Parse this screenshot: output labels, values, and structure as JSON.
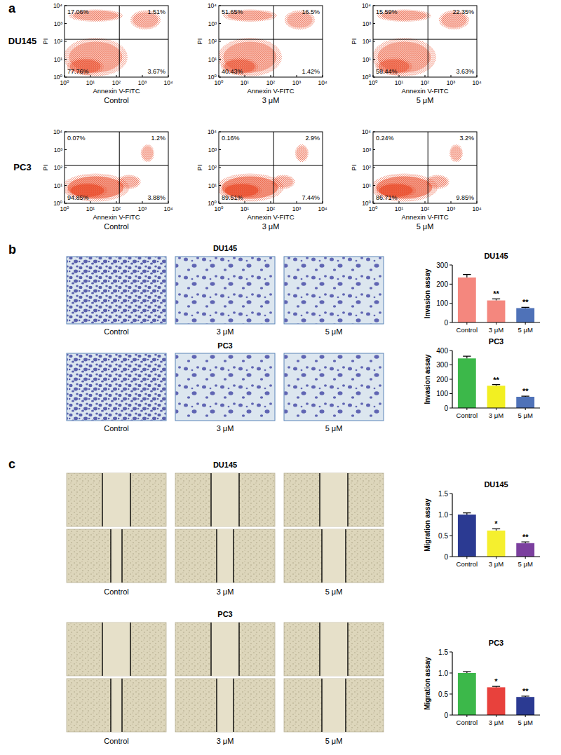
{
  "chart_data": [
    {
      "type": "scatter",
      "title": "Control",
      "xlabel": "Annexin V-FITC",
      "ylabel": "PI",
      "log": true,
      "color": "#e8401c",
      "xlim": [
        1,
        10000
      ],
      "ylim": [
        1,
        10000
      ],
      "xticks": [
        {
          "value": 1,
          "label": "10⁰"
        },
        {
          "value": 10,
          "label": "10¹"
        },
        {
          "value": 100,
          "label": "10²"
        },
        {
          "value": 1000,
          "label": "10³"
        },
        {
          "value": 10000,
          "label": "10⁴"
        }
      ],
      "yticks": [
        {
          "value": 1,
          "label": "10⁰"
        },
        {
          "value": 10,
          "label": "10¹"
        },
        {
          "value": 100,
          "label": "10²"
        },
        {
          "value": 1000,
          "label": "10³"
        },
        {
          "value": 10000,
          "label": "10⁴"
        }
      ],
      "gates": [
        130,
        130
      ],
      "annotations": [
        "17.06%",
        "1.51%",
        "77.76%",
        "3.67%"
      ]
    },
    {
      "type": "scatter",
      "title": "3 μM",
      "xlabel": "Annexin V-FITC",
      "ylabel": "PI",
      "log": true,
      "color": "#e8401c",
      "xlim": [
        1,
        10000
      ],
      "ylim": [
        1,
        10000
      ],
      "xticks": [
        {
          "value": 1,
          "label": "10⁰"
        },
        {
          "value": 10,
          "label": "10¹"
        },
        {
          "value": 100,
          "label": "10²"
        },
        {
          "value": 1000,
          "label": "10³"
        },
        {
          "value": 10000,
          "label": "10⁴"
        }
      ],
      "yticks": [
        {
          "value": 1,
          "label": "10⁰"
        },
        {
          "value": 10,
          "label": "10¹"
        },
        {
          "value": 100,
          "label": "10²"
        },
        {
          "value": 1000,
          "label": "10³"
        },
        {
          "value": 10000,
          "label": "10⁴"
        }
      ],
      "gates": [
        130,
        130
      ],
      "annotations": [
        "51.65%",
        "16.5%",
        "40.43%",
        "1.42%"
      ]
    },
    {
      "type": "scatter",
      "title": "5 μM",
      "xlabel": "Annexin V-FITC",
      "ylabel": "PI",
      "log": true,
      "color": "#e8401c",
      "xlim": [
        1,
        10000
      ],
      "ylim": [
        1,
        10000
      ],
      "xticks": [
        {
          "value": 1,
          "label": "10⁰"
        },
        {
          "value": 10,
          "label": "10¹"
        },
        {
          "value": 100,
          "label": "10²"
        },
        {
          "value": 1000,
          "label": "10³"
        },
        {
          "value": 10000,
          "label": "10⁴"
        }
      ],
      "yticks": [
        {
          "value": 1,
          "label": "10⁰"
        },
        {
          "value": 10,
          "label": "10¹"
        },
        {
          "value": 100,
          "label": "10²"
        },
        {
          "value": 1000,
          "label": "10³"
        },
        {
          "value": 10000,
          "label": "10⁴"
        }
      ],
      "gates": [
        130,
        130
      ],
      "annotations": [
        "15.59%",
        "22.35%",
        "58.44%",
        "3.63%"
      ]
    },
    {
      "type": "scatter",
      "title": "Control",
      "xlabel": "Annexin V-FITC",
      "ylabel": "PI",
      "log": true,
      "color": "#e8401c",
      "xlim": [
        1,
        10000
      ],
      "ylim": [
        1,
        10000
      ],
      "xticks": [
        {
          "value": 1,
          "label": "10⁰"
        },
        {
          "value": 10,
          "label": "10¹"
        },
        {
          "value": 100,
          "label": "10²"
        },
        {
          "value": 1000,
          "label": "10³"
        },
        {
          "value": 10000,
          "label": "10⁴"
        }
      ],
      "yticks": [
        {
          "value": 1,
          "label": "10⁰"
        },
        {
          "value": 10,
          "label": "10¹"
        },
        {
          "value": 100,
          "label": "10²"
        },
        {
          "value": 1000,
          "label": "10³"
        },
        {
          "value": 10000,
          "label": "10⁴"
        }
      ],
      "gates": [
        130,
        130
      ],
      "annotations": [
        "0.07%",
        "1.2%",
        "94.85%",
        "3.88%"
      ]
    },
    {
      "type": "scatter",
      "title": "3 μM",
      "xlabel": "Annexin V-FITC",
      "ylabel": "PI",
      "log": true,
      "color": "#e8401c",
      "xlim": [
        1,
        10000
      ],
      "ylim": [
        1,
        10000
      ],
      "xticks": [
        {
          "value": 1,
          "label": "10⁰"
        },
        {
          "value": 10,
          "label": "10¹"
        },
        {
          "value": 100,
          "label": "10²"
        },
        {
          "value": 1000,
          "label": "10³"
        },
        {
          "value": 10000,
          "label": "10⁴"
        }
      ],
      "yticks": [
        {
          "value": 1,
          "label": "10⁰"
        },
        {
          "value": 10,
          "label": "10¹"
        },
        {
          "value": 100,
          "label": "10²"
        },
        {
          "value": 1000,
          "label": "10³"
        },
        {
          "value": 10000,
          "label": "10⁴"
        }
      ],
      "gates": [
        130,
        130
      ],
      "annotations": [
        "0.16%",
        "2.9%",
        "89.51%",
        "7.44%"
      ]
    },
    {
      "type": "scatter",
      "title": "5 μM",
      "xlabel": "Annexin V-FITC",
      "ylabel": "PI",
      "log": true,
      "color": "#e8401c",
      "xlim": [
        1,
        10000
      ],
      "ylim": [
        1,
        10000
      ],
      "xticks": [
        {
          "value": 1,
          "label": "10⁰"
        },
        {
          "value": 10,
          "label": "10¹"
        },
        {
          "value": 100,
          "label": "10²"
        },
        {
          "value": 1000,
          "label": "10³"
        },
        {
          "value": 10000,
          "label": "10⁴"
        }
      ],
      "yticks": [
        {
          "value": 1,
          "label": "10⁰"
        },
        {
          "value": 10,
          "label": "10¹"
        },
        {
          "value": 100,
          "label": "10²"
        },
        {
          "value": 1000,
          "label": "10³"
        },
        {
          "value": 10000,
          "label": "10⁴"
        }
      ],
      "gates": [
        130,
        130
      ],
      "annotations": [
        "0.24%",
        "3.2%",
        "86.71%",
        "9.85%"
      ]
    },
    {
      "type": "bar",
      "title": "DU145",
      "ylabel": "Invasion assay",
      "categories": [
        "Control",
        "3 μM",
        "5 μM"
      ],
      "values": [
        235,
        115,
        75
      ],
      "errors": [
        15,
        8,
        4
      ],
      "colors": [
        "#f4877e",
        "#f4877e",
        "#4f72b8"
      ],
      "ylim": [
        0,
        300
      ],
      "yticks": [
        0,
        100,
        200,
        300
      ],
      "annotations": [
        null,
        "**",
        "**"
      ]
    },
    {
      "type": "bar",
      "title": "PC3",
      "ylabel": "Invasion assay",
      "categories": [
        "Control",
        "3 μM",
        "5 μM"
      ],
      "values": [
        345,
        155,
        78
      ],
      "errors": [
        15,
        8,
        4
      ],
      "colors": [
        "#3cb84a",
        "#f2ef22",
        "#4f72b8"
      ],
      "ylim": [
        0,
        400
      ],
      "yticks": [
        0,
        100,
        200,
        300,
        400
      ],
      "annotations": [
        null,
        "**",
        "**"
      ]
    },
    {
      "type": "bar",
      "title": "DU145",
      "ylabel": "Migration assay",
      "categories": [
        "Control",
        "3 μM",
        "5 μM"
      ],
      "values": [
        1.0,
        0.62,
        0.32
      ],
      "errors": [
        0.04,
        0.04,
        0.03
      ],
      "colors": [
        "#2b3a92",
        "#f5ef2e",
        "#7b3f9e"
      ],
      "ylim": [
        0,
        1.5
      ],
      "yticks": [
        0,
        0.5,
        {
          "value": 1,
          "label": "1.0"
        },
        1.5
      ],
      "annotations": [
        null,
        "*",
        "**"
      ]
    },
    {
      "type": "bar",
      "title": "PC3",
      "ylabel": "Migration assay",
      "categories": [
        "Control",
        "3 μM",
        "5 μM"
      ],
      "values": [
        1.0,
        0.66,
        0.43
      ],
      "errors": [
        0.03,
        0.02,
        0.02
      ],
      "colors": [
        "#3cb84a",
        "#e8413c",
        "#2b3a92"
      ],
      "ylim": [
        0,
        1.5
      ],
      "yticks": [
        0,
        0.5,
        {
          "value": 1,
          "label": "1.0"
        },
        1.5
      ],
      "annotations": [
        null,
        "*",
        "**"
      ]
    }
  ],
  "figure": {
    "panel_labels": [
      "a",
      "b",
      "c"
    ],
    "flow_rows": [
      "DU145",
      "PC3"
    ],
    "invasion": [
      {
        "title": "DU145",
        "labels": [
          "Control",
          "3 μM",
          "5 μM"
        ]
      },
      {
        "title": "PC3",
        "labels": [
          "Control",
          "3 μM",
          "5 μM"
        ]
      }
    ],
    "migration": [
      {
        "title": "DU145",
        "labels": [
          "Control",
          "3 μM",
          "5 μM"
        ]
      },
      {
        "title": "PC3",
        "labels": [
          "Control",
          "3 μM",
          "5 μM"
        ]
      }
    ]
  }
}
